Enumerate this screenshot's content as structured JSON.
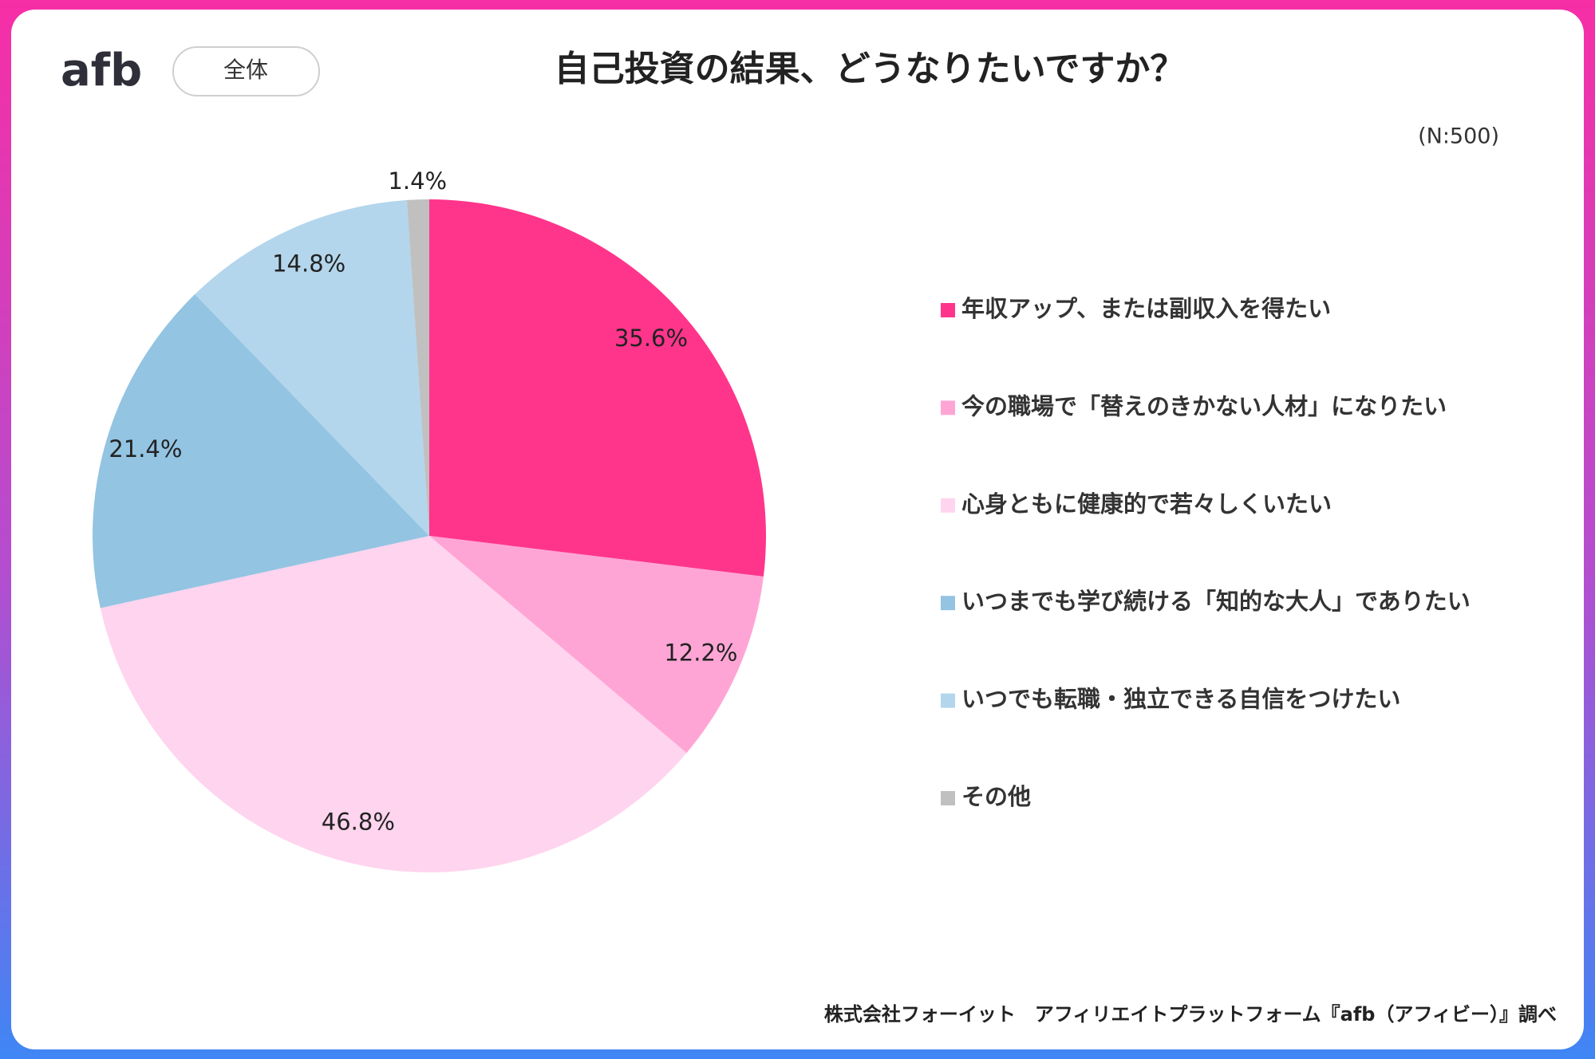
{
  "header": {
    "logo": "afb",
    "badge": "全体"
  },
  "chart_data": {
    "type": "pie",
    "title": "自己投資の結果、どうなりたいですか？",
    "note": "(N:500)",
    "source": "株式会社フォーイット　アフィリエイトプラットフォーム『afb（アフィビー）』調べ",
    "categories": [
      "年収アップ、または副収入を得たい",
      "今の職場で「替えのきかない人材」になりたい",
      "心身ともに健康的で若々しくいたい",
      "いつまでも学び続ける「知的な大人」でありたい",
      "いつでも転職・独立できる自信をつけたい",
      "その他"
    ],
    "values": [
      35.6,
      12.2,
      46.8,
      21.4,
      14.8,
      1.4
    ],
    "value_labels": [
      "35.6%",
      "12.2%",
      "46.8%",
      "21.4%",
      "14.8%",
      "1.4%"
    ],
    "colors": [
      "#ff358b",
      "#ffa5d6",
      "#ffd4ee",
      "#93c4e2",
      "#b3d6ec",
      "#c0c0c0"
    ],
    "legend": "right"
  }
}
